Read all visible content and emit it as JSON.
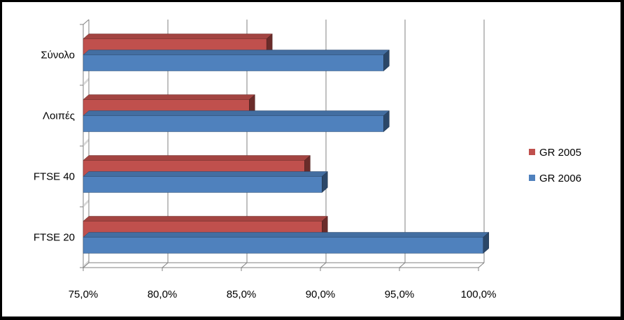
{
  "chart_data": {
    "type": "bar",
    "orientation": "horizontal",
    "style": "3d-clustered",
    "categories": [
      "FTSE 20",
      "FTSE 40",
      "Λοιπές",
      "Σύνολο"
    ],
    "series": [
      {
        "name": "GR 2005",
        "color": "#C0504D",
        "values": [
          90.1,
          89.0,
          85.5,
          86.6
        ]
      },
      {
        "name": "GR 2006",
        "color": "#4F81BD",
        "values": [
          100.3,
          90.1,
          94.0,
          94.0
        ]
      }
    ],
    "x_ticks": [
      "75,0%",
      "80,0%",
      "85,0%",
      "90,0%",
      "95,0%",
      "100,0%"
    ],
    "xlim": [
      75,
      100
    ],
    "grid": true,
    "legend_position": "right",
    "title": "",
    "xlabel": "",
    "ylabel": ""
  }
}
